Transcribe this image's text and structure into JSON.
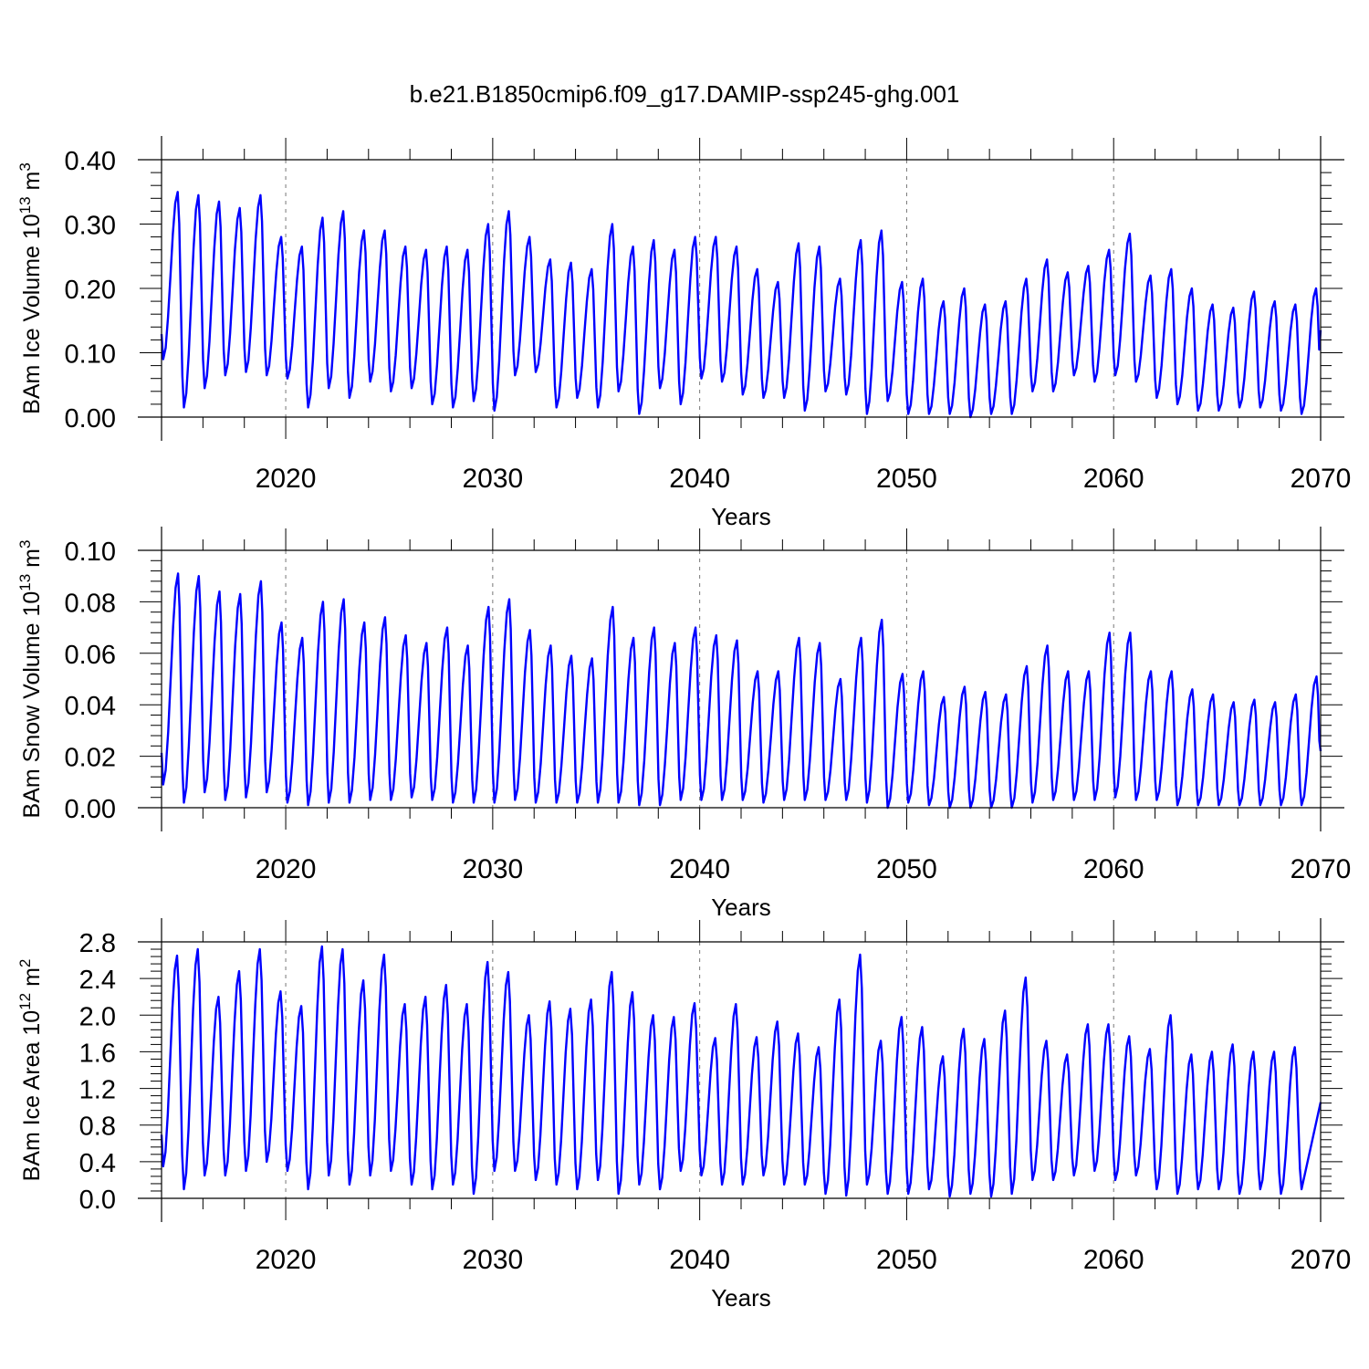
{
  "title": "b.e21.B1850cmip6.f09_g17.DAMIP-ssp245-ghg.001",
  "colors": {
    "line": "#0000ff",
    "axis": "#000000",
    "grid": "#777777"
  },
  "chart_data": [
    {
      "type": "line",
      "name": "ice-volume",
      "ylabel_main": "BAm Ice Volume 10",
      "ylabel_exp": "13",
      "ylabel_unit": " m",
      "ylabel_unit_exp": "3",
      "xlabel": "Years",
      "xlim": [
        2014.0,
        2070.0
      ],
      "ylim": [
        0.0,
        0.4
      ],
      "xticks": [
        2020,
        2030,
        2040,
        2050,
        2060,
        2070
      ],
      "xtick_labels": [
        "2020",
        "2030",
        "2040",
        "2050",
        "2060",
        "2070"
      ],
      "yticks": [
        0.0,
        0.1,
        0.2,
        0.3,
        0.4
      ],
      "ytick_labels": [
        "0.00",
        "0.10",
        "0.20",
        "0.30",
        "0.40"
      ],
      "grid": "vertical dashed at decades",
      "series": [
        {
          "name": "BAm Ice Volume",
          "start_year": 2014.0,
          "peak_phase": 0.78,
          "peaks": [
            0.35,
            0.345,
            0.335,
            0.325,
            0.345,
            0.28,
            0.265,
            0.31,
            0.32,
            0.29,
            0.29,
            0.265,
            0.26,
            0.265,
            0.26,
            0.3,
            0.32,
            0.28,
            0.245,
            0.24,
            0.23,
            0.3,
            0.265,
            0.275,
            0.26,
            0.28,
            0.28,
            0.265,
            0.23,
            0.21,
            0.27,
            0.265,
            0.215,
            0.275,
            0.29,
            0.21,
            0.215,
            0.18,
            0.2,
            0.175,
            0.18,
            0.215,
            0.245,
            0.225,
            0.235,
            0.26,
            0.285,
            0.22,
            0.23,
            0.2,
            0.175,
            0.17,
            0.195,
            0.18,
            0.175,
            0.2
          ],
          "troughs": [
            0.09,
            0.015,
            0.045,
            0.065,
            0.07,
            0.065,
            0.06,
            0.015,
            0.045,
            0.03,
            0.055,
            0.04,
            0.045,
            0.02,
            0.015,
            0.025,
            0.01,
            0.065,
            0.07,
            0.015,
            0.03,
            0.015,
            0.04,
            0.005,
            0.045,
            0.02,
            0.06,
            0.055,
            0.035,
            0.03,
            0.03,
            0.01,
            0.04,
            0.035,
            0.005,
            0.025,
            0.005,
            0.005,
            0.005,
            0.0,
            0.005,
            0.005,
            0.04,
            0.04,
            0.065,
            0.055,
            0.065,
            0.055,
            0.03,
            0.02,
            0.01,
            0.01,
            0.015,
            0.015,
            0.01,
            0.005,
            0.01
          ],
          "end_value": 0.135
        }
      ]
    },
    {
      "type": "line",
      "name": "snow-volume",
      "ylabel_main": "BAm Snow Volume 10",
      "ylabel_exp": "13",
      "ylabel_unit": " m",
      "ylabel_unit_exp": "3",
      "xlabel": "Years",
      "xlim": [
        2014.0,
        2070.0
      ],
      "ylim": [
        0.0,
        0.1
      ],
      "xticks": [
        2020,
        2030,
        2040,
        2050,
        2060,
        2070
      ],
      "xtick_labels": [
        "2020",
        "2030",
        "2040",
        "2050",
        "2060",
        "2070"
      ],
      "yticks": [
        0.0,
        0.02,
        0.04,
        0.06,
        0.08,
        0.1
      ],
      "ytick_labels": [
        "0.00",
        "0.02",
        "0.04",
        "0.06",
        "0.08",
        "0.10"
      ],
      "grid": "vertical dashed at decades",
      "series": [
        {
          "name": "BAm Snow Volume",
          "start_year": 2014.0,
          "peak_phase": 0.8,
          "peaks": [
            0.091,
            0.09,
            0.084,
            0.083,
            0.088,
            0.072,
            0.066,
            0.08,
            0.081,
            0.072,
            0.074,
            0.067,
            0.064,
            0.07,
            0.063,
            0.078,
            0.081,
            0.069,
            0.063,
            0.059,
            0.058,
            0.078,
            0.066,
            0.07,
            0.064,
            0.07,
            0.067,
            0.065,
            0.053,
            0.053,
            0.066,
            0.064,
            0.05,
            0.066,
            0.073,
            0.052,
            0.053,
            0.043,
            0.047,
            0.045,
            0.044,
            0.055,
            0.063,
            0.053,
            0.053,
            0.068,
            0.068,
            0.053,
            0.053,
            0.046,
            0.044,
            0.041,
            0.042,
            0.041,
            0.044,
            0.051
          ],
          "troughs": [
            0.009,
            0.002,
            0.006,
            0.003,
            0.004,
            0.006,
            0.002,
            0.001,
            0.002,
            0.002,
            0.003,
            0.003,
            0.004,
            0.003,
            0.002,
            0.002,
            0.002,
            0.003,
            0.002,
            0.002,
            0.002,
            0.002,
            0.002,
            0.001,
            0.001,
            0.003,
            0.003,
            0.003,
            0.003,
            0.002,
            0.003,
            0.003,
            0.003,
            0.003,
            0.002,
            0.0,
            0.002,
            0.001,
            0.0,
            0.0,
            0.0,
            0.0,
            0.002,
            0.003,
            0.003,
            0.003,
            0.004,
            0.003,
            0.003,
            0.001,
            0.001,
            0.001,
            0.001,
            0.001,
            0.001,
            0.001,
            0.001
          ],
          "end_value": 0.022
        }
      ]
    },
    {
      "type": "line",
      "name": "ice-area",
      "ylabel_main": "BAm Ice Area 10",
      "ylabel_exp": "12",
      "ylabel_unit": " m",
      "ylabel_unit_exp": "2",
      "xlabel": "Years",
      "xlim": [
        2014.0,
        2070.0
      ],
      "ylim": [
        0.0,
        2.8
      ],
      "xticks": [
        2020,
        2030,
        2040,
        2050,
        2060,
        2070
      ],
      "xtick_labels": [
        "2020",
        "2030",
        "2040",
        "2050",
        "2060",
        "2070"
      ],
      "yticks": [
        0.0,
        0.4,
        0.8,
        1.2,
        1.6,
        2.0,
        2.4,
        2.8
      ],
      "ytick_labels": [
        "0.0",
        "0.4",
        "0.8",
        "1.2",
        "1.6",
        "2.0",
        "2.4",
        "2.8"
      ],
      "grid": "vertical dashed at decades",
      "series": [
        {
          "name": "BAm Ice Area",
          "start_year": 2014.0,
          "peak_phase": 0.75,
          "peaks": [
            2.65,
            2.72,
            2.2,
            2.48,
            2.72,
            2.26,
            2.1,
            2.75,
            2.72,
            2.38,
            2.66,
            2.12,
            2.2,
            2.33,
            2.12,
            2.58,
            2.47,
            2.0,
            2.15,
            2.07,
            2.17,
            2.47,
            2.25,
            2.0,
            1.98,
            2.13,
            1.75,
            2.12,
            1.76,
            1.93,
            1.8,
            1.65,
            2.17,
            2.66,
            1.72,
            1.98,
            1.87,
            1.55,
            1.85,
            1.74,
            2.05,
            2.41,
            1.72,
            1.57,
            1.9,
            1.9,
            1.77,
            1.63,
            2.0,
            1.57,
            1.6,
            1.68,
            1.6,
            1.6,
            1.65
          ],
          "troughs": [
            0.35,
            0.1,
            0.25,
            0.25,
            0.3,
            0.4,
            0.3,
            0.1,
            0.25,
            0.15,
            0.25,
            0.3,
            0.15,
            0.1,
            0.15,
            0.05,
            0.3,
            0.3,
            0.2,
            0.15,
            0.1,
            0.2,
            0.05,
            0.15,
            0.1,
            0.3,
            0.25,
            0.15,
            0.15,
            0.25,
            0.15,
            0.15,
            0.05,
            0.03,
            0.15,
            0.05,
            0.05,
            0.1,
            0.02,
            0.05,
            0.02,
            0.05,
            0.2,
            0.2,
            0.25,
            0.3,
            0.2,
            0.25,
            0.1,
            0.05,
            0.1,
            0.1,
            0.05,
            0.1,
            0.05,
            0.1
          ],
          "end_value": 1.05
        }
      ]
    }
  ]
}
